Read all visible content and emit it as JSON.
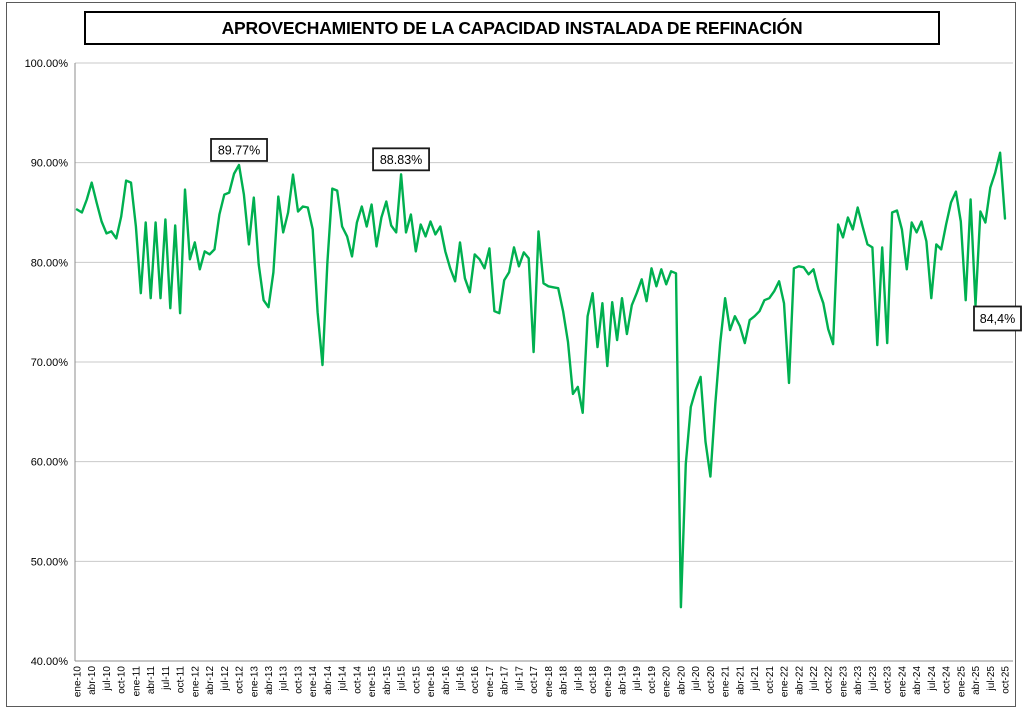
{
  "title": "APROVECHAMIENTO DE LA CAPACIDAD INSTALADA DE REFINACIÓN",
  "chart_data": {
    "type": "line",
    "title": "APROVECHAMIENTO DE LA CAPACIDAD INSTALADA DE REFINACIÓN",
    "xlabel": "",
    "ylabel": "",
    "ylim": [
      40,
      100
    ],
    "grid": true,
    "legend": "none",
    "series_color": "#00B050",
    "y_tick_labels": [
      "100.00%",
      "90.00%",
      "80.00%",
      "70.00%",
      "60.00%",
      "50.00%",
      "40.00%"
    ],
    "y_tick_values": [
      100,
      90,
      80,
      70,
      60,
      50,
      40
    ],
    "months_per_tick": 3,
    "x_tick_labels": [
      "ene-10",
      "abr-10",
      "jul-10",
      "oct-10",
      "ene-11",
      "abr-11",
      "jul-11",
      "oct-11",
      "ene-12",
      "abr-12",
      "jul-12",
      "oct-12",
      "ene-13",
      "abr-13",
      "jul-13",
      "oct-13",
      "ene-14",
      "abr-14",
      "jul-14",
      "oct-14",
      "ene-15",
      "abr-15",
      "jul-15",
      "oct-15",
      "ene-16",
      "abr-16",
      "jul-16",
      "oct-16",
      "ene-17",
      "abr-17",
      "jul-17",
      "oct-17",
      "ene-18",
      "abr-18",
      "jul-18",
      "oct-18",
      "ene-19",
      "abr-19",
      "jul-19",
      "oct-19",
      "ene-20",
      "abr-20",
      "jul-20",
      "oct-20",
      "ene-21",
      "abr-21",
      "jul-21",
      "oct-21",
      "ene-22",
      "abr-22",
      "jul-22",
      "oct-22",
      "ene-23",
      "abr-23",
      "jul-23",
      "oct-23",
      "ene-24",
      "abr-24",
      "jul-24",
      "oct-24",
      "ene-25",
      "abr-25",
      "jul-25",
      "oct-25"
    ],
    "values": [
      85.3,
      85.0,
      86.3,
      88.0,
      86.0,
      84.1,
      82.9,
      83.1,
      82.4,
      84.6,
      88.2,
      88.0,
      83.6,
      76.9,
      84.0,
      76.4,
      84.0,
      76.4,
      84.3,
      75.4,
      83.7,
      74.9,
      87.3,
      80.3,
      82.0,
      79.3,
      81.1,
      80.8,
      81.3,
      84.8,
      86.8,
      87.0,
      88.9,
      89.77,
      86.8,
      81.8,
      86.5,
      79.8,
      76.2,
      75.5,
      79.0,
      86.6,
      83.0,
      85.0,
      88.8,
      85.1,
      85.6,
      85.5,
      83.3,
      75.0,
      69.7,
      80.0,
      87.4,
      87.2,
      83.6,
      82.6,
      80.6,
      84.0,
      85.6,
      83.6,
      85.8,
      81.6,
      84.5,
      86.1,
      83.7,
      83.0,
      88.83,
      83.0,
      84.8,
      81.1,
      83.8,
      82.6,
      84.1,
      82.8,
      83.6,
      81.1,
      79.4,
      78.1,
      82.0,
      78.4,
      77.0,
      80.8,
      80.3,
      79.4,
      81.4,
      75.1,
      74.9,
      78.2,
      79.0,
      81.5,
      79.6,
      81.0,
      80.4,
      71.0,
      83.1,
      77.9,
      77.6,
      77.5,
      77.4,
      75.1,
      72.0,
      66.8,
      67.5,
      64.9,
      74.6,
      76.9,
      71.5,
      75.9,
      69.6,
      76.0,
      72.2,
      76.4,
      72.8,
      75.7,
      76.9,
      78.3,
      76.1,
      79.4,
      77.6,
      79.3,
      77.8,
      79.1,
      78.9,
      45.4,
      59.8,
      65.5,
      67.2,
      68.5,
      62.0,
      58.5,
      65.8,
      71.9,
      76.4,
      73.2,
      74.6,
      73.6,
      71.9,
      74.2,
      74.6,
      75.1,
      76.2,
      76.4,
      77.1,
      78.1,
      75.9,
      67.9,
      79.4,
      79.6,
      79.5,
      78.8,
      79.3,
      77.3,
      75.9,
      73.3,
      71.8,
      83.8,
      82.5,
      84.5,
      83.3,
      85.5,
      83.6,
      81.8,
      81.5,
      71.7,
      81.5,
      71.9,
      85.0,
      85.2,
      83.3,
      79.3,
      84.0,
      83.0,
      84.1,
      82.1,
      76.4,
      81.8,
      81.3,
      83.8,
      86.0,
      87.1,
      84.1,
      76.2,
      86.3,
      75.7,
      85.1,
      84.0,
      87.5,
      89.0,
      91.0,
      84.4
    ],
    "annotations": [
      {
        "label": "89.77%",
        "month": "oct-12",
        "index": 33,
        "placement": "above"
      },
      {
        "label": "88.83%",
        "month": "jul-15",
        "index": 66,
        "placement": "above"
      },
      {
        "label": "84,4%",
        "month": "oct-25",
        "index": 189,
        "placement": "below-left"
      }
    ]
  }
}
